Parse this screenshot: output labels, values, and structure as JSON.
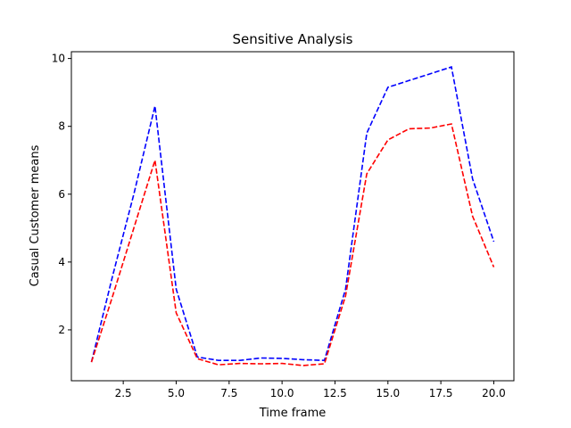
{
  "chart_data": {
    "type": "line",
    "title": "Sensitive Analysis",
    "xlabel": "Time frame",
    "ylabel": "Casual Customer means",
    "xlim": [
      0.05,
      20.95
    ],
    "ylim": [
      0.5,
      10.2
    ],
    "xticks": [
      2.5,
      5.0,
      7.5,
      10.0,
      12.5,
      15.0,
      17.5,
      20.0
    ],
    "xtick_labels": [
      "2.5",
      "5.0",
      "7.5",
      "10.0",
      "12.5",
      "15.0",
      "17.5",
      "20.0"
    ],
    "yticks": [
      2,
      4,
      6,
      8,
      10
    ],
    "ytick_labels": [
      "2",
      "4",
      "6",
      "8",
      "10"
    ],
    "grid": false,
    "legend": "none",
    "x": [
      1,
      2,
      3,
      4,
      5,
      6,
      7,
      8,
      9,
      10,
      11,
      12,
      13,
      14,
      15,
      16,
      17,
      18,
      19,
      20
    ],
    "series": [
      {
        "color": "#0000ff",
        "linestyle": "dashed",
        "values": [
          1.05,
          3.6,
          6.0,
          8.6,
          3.2,
          1.2,
          1.1,
          1.1,
          1.17,
          1.16,
          1.12,
          1.1,
          3.2,
          7.8,
          9.15,
          9.35,
          9.55,
          9.75,
          6.45,
          4.6
        ]
      },
      {
        "color": "#ff0000",
        "linestyle": "dashed",
        "values": [
          1.05,
          3.0,
          5.0,
          7.0,
          2.5,
          1.15,
          0.97,
          1.01,
          1.0,
          1.01,
          0.95,
          1.0,
          3.0,
          6.6,
          7.6,
          7.93,
          7.95,
          8.07,
          5.35,
          3.85
        ]
      }
    ]
  }
}
